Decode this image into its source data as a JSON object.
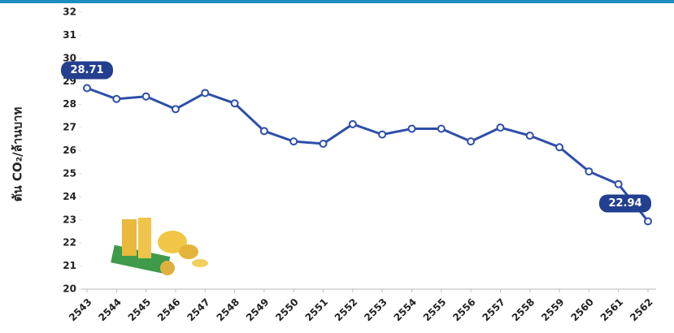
{
  "chart_data": {
    "type": "line",
    "y_label": "ตัน CO₂/ล้านบาท",
    "categories": [
      "2543",
      "2544",
      "2545",
      "2546",
      "2547",
      "2548",
      "2549",
      "2550",
      "2551",
      "2552",
      "2553",
      "2554",
      "2555",
      "2556",
      "2557",
      "2558",
      "2559",
      "2560",
      "2561",
      "2562"
    ],
    "series": [
      {
        "name": null,
        "color": "#2e4fa8",
        "values": [
          28.71,
          28.24,
          28.35,
          27.8,
          28.5,
          28.05,
          26.85,
          26.4,
          26.3,
          27.15,
          26.7,
          26.95,
          26.95,
          26.4,
          27.0,
          26.65,
          26.15,
          25.1,
          24.55,
          22.94
        ],
        "value_labels": [
          "28.71",
          null,
          null,
          null,
          null,
          null,
          null,
          null,
          null,
          null,
          null,
          null,
          null,
          null,
          null,
          null,
          null,
          null,
          null,
          "22.94"
        ]
      }
    ],
    "ylim": [
      20,
      32
    ],
    "yticks": [
      20,
      21,
      22,
      23,
      24,
      25,
      26,
      27,
      28,
      29,
      30,
      31,
      32
    ],
    "grid": false
  }
}
